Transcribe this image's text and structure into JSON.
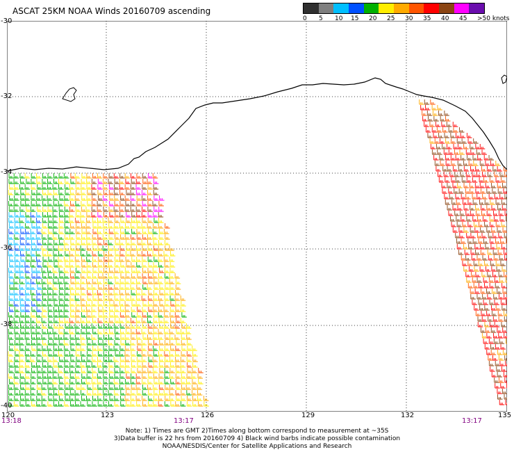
{
  "title": "ASCAT 25KM NOAA Winds 20160709 ascending",
  "legend": {
    "labels": [
      "0",
      "5",
      "10",
      "15",
      "20",
      "25",
      "30",
      "35",
      "40",
      "45",
      ">50 knots"
    ],
    "colors": [
      "#303030",
      "#7f7f7f",
      "#00bfff",
      "#0050ff",
      "#00b000",
      "#ffee00",
      "#ffaa00",
      "#ff5500",
      "#ff0000",
      "#8b4513",
      "#ff00ff",
      "#6a0dad"
    ]
  },
  "map": {
    "lat_labels": [
      "-30",
      "-32",
      "-34",
      "-36",
      "-38",
      "-40"
    ],
    "lon_labels": [
      "120",
      "123",
      "126",
      "129",
      "132",
      "135"
    ],
    "time_labels": [
      "13:18",
      "13:17",
      "13:17"
    ]
  },
  "notes": [
    "Note: 1) Times are GMT 2)Times along bottom correspond to measurement at ~35S",
    "3)Data buffer is 22 hrs from 20160709 4) Black wind barbs indicate possible contamination",
    "NOAA/NESDIS/Center for Satellite Applications and Research"
  ]
}
